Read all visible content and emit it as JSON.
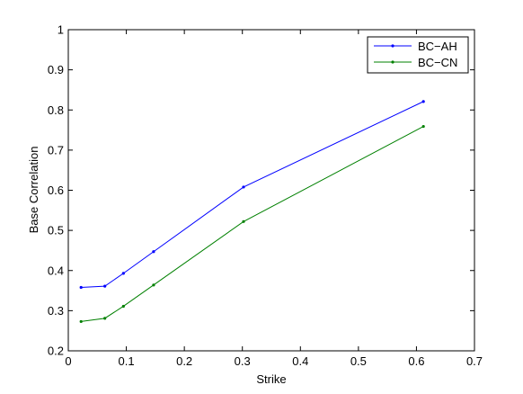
{
  "chart_data": {
    "type": "line",
    "title": "",
    "xlabel": "Strike",
    "ylabel": "Base Correlation",
    "xlim": [
      0,
      0.7
    ],
    "ylim": [
      0.2,
      1
    ],
    "xticks": [
      "0",
      "0.1",
      "0.2",
      "0.3",
      "0.4",
      "0.5",
      "0.6",
      "0.7"
    ],
    "yticks": [
      "0.2",
      "0.3",
      "0.4",
      "0.5",
      "0.6",
      "0.7",
      "0.8",
      "0.9",
      "1"
    ],
    "grid": false,
    "legend_position": "top-right",
    "series": [
      {
        "name": "BC−AH",
        "color": "#0000ff",
        "x": [
          0.022,
          0.063,
          0.095,
          0.147,
          0.302,
          0.612
        ],
        "y": [
          0.358,
          0.361,
          0.393,
          0.447,
          0.608,
          0.821
        ]
      },
      {
        "name": "BC−CN",
        "color": "#008000",
        "x": [
          0.022,
          0.063,
          0.095,
          0.147,
          0.302,
          0.612
        ],
        "y": [
          0.273,
          0.281,
          0.311,
          0.364,
          0.522,
          0.759
        ]
      }
    ]
  }
}
